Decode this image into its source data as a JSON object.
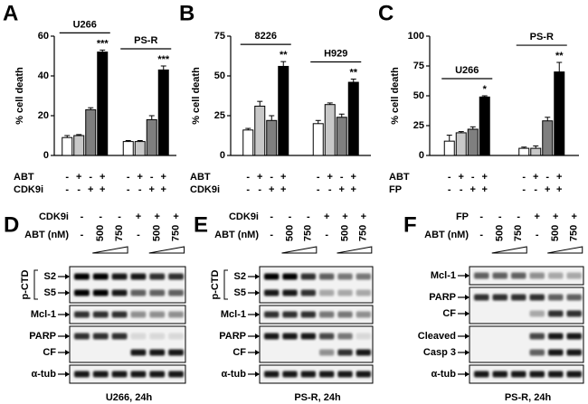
{
  "chart_data": [
    {
      "type": "bar",
      "letter": "A",
      "ylabel": "% cell death",
      "ylim": [
        0,
        60
      ],
      "yticks": [
        0,
        20,
        40,
        60
      ],
      "groups": [
        "U266",
        "PS-R"
      ],
      "series": [
        {
          "color": "#ffffff",
          "values": [
            9,
            7
          ],
          "errors": [
            1,
            0.5
          ]
        },
        {
          "color": "#c8c8c8",
          "values": [
            10,
            7
          ],
          "errors": [
            0.5,
            0.5
          ]
        },
        {
          "color": "#7f7f7f",
          "values": [
            23,
            18
          ],
          "errors": [
            1,
            2
          ]
        },
        {
          "color": "#000000",
          "values": [
            52,
            43
          ],
          "errors": [
            1,
            2
          ],
          "annotations": [
            "***",
            "***"
          ]
        }
      ],
      "conditions": [
        {
          "label": "ABT",
          "signs": [
            "-",
            "+",
            "-",
            "+",
            "-",
            "+",
            "-",
            "+"
          ]
        },
        {
          "label": "CDK9i",
          "signs": [
            "-",
            "-",
            "+",
            "+",
            "-",
            "-",
            "+",
            "+"
          ]
        }
      ]
    },
    {
      "type": "bar",
      "letter": "B",
      "ylabel": "% cell death",
      "ylim": [
        0,
        75
      ],
      "yticks": [
        0,
        25,
        50,
        75
      ],
      "groups": [
        "8226",
        "H929"
      ],
      "series": [
        {
          "color": "#ffffff",
          "values": [
            16,
            20
          ],
          "errors": [
            1,
            2
          ]
        },
        {
          "color": "#c8c8c8",
          "values": [
            31,
            32
          ],
          "errors": [
            3,
            1
          ]
        },
        {
          "color": "#7f7f7f",
          "values": [
            22,
            24
          ],
          "errors": [
            3,
            2
          ]
        },
        {
          "color": "#000000",
          "values": [
            56,
            46
          ],
          "errors": [
            3,
            2
          ],
          "annotations": [
            "**",
            "**"
          ]
        }
      ],
      "conditions": [
        {
          "label": "ABT",
          "signs": [
            "-",
            "+",
            "-",
            "+",
            "-",
            "+",
            "-",
            "+"
          ]
        },
        {
          "label": "CDK9i",
          "signs": [
            "-",
            "-",
            "+",
            "+",
            "-",
            "-",
            "+",
            "+"
          ]
        }
      ]
    },
    {
      "type": "bar",
      "letter": "C",
      "ylabel": "% cell death",
      "ylim": [
        0,
        100
      ],
      "yticks": [
        0,
        25,
        50,
        75,
        100
      ],
      "groups": [
        "U266",
        "PS-R"
      ],
      "series": [
        {
          "color": "#ffffff",
          "values": [
            12,
            6
          ],
          "errors": [
            5,
            1
          ]
        },
        {
          "color": "#c8c8c8",
          "values": [
            19,
            6
          ],
          "errors": [
            1,
            2
          ]
        },
        {
          "color": "#7f7f7f",
          "values": [
            22,
            29
          ],
          "errors": [
            2,
            3
          ]
        },
        {
          "color": "#000000",
          "values": [
            49,
            70
          ],
          "errors": [
            1,
            8
          ],
          "annotations": [
            "*",
            "**"
          ]
        }
      ],
      "conditions": [
        {
          "label": "ABT",
          "signs": [
            "-",
            "+",
            "-",
            "+",
            "-",
            "+",
            "-",
            "+"
          ]
        },
        {
          "label": "FP",
          "signs": [
            "-",
            "-",
            "+",
            "+",
            "-",
            "-",
            "+",
            "+"
          ]
        }
      ]
    }
  ],
  "blots": [
    {
      "letter": "D",
      "rows": [
        {
          "label": "CDK9i",
          "signs": [
            "-",
            "-",
            "-",
            "+",
            "+",
            "+"
          ]
        },
        {
          "label": "ABT (nM)",
          "signs": [
            "-",
            "500",
            "750",
            "-",
            "500",
            "750"
          ]
        }
      ],
      "boxes": [
        {
          "group": "p-CTD",
          "labels": [
            "S2",
            "S5"
          ]
        },
        {
          "labels": [
            "Mcl-1"
          ]
        },
        {
          "labels": [
            "PARP",
            "CF"
          ]
        },
        {
          "labels": [
            "α-tub"
          ]
        }
      ],
      "caption": "U266, 24h"
    },
    {
      "letter": "E",
      "rows": [
        {
          "label": "CDK9i",
          "signs": [
            "-",
            "-",
            "-",
            "+",
            "+",
            "+"
          ]
        },
        {
          "label": "ABT (nM)",
          "signs": [
            "-",
            "500",
            "750",
            "-",
            "500",
            "750"
          ]
        }
      ],
      "boxes": [
        {
          "group": "p-CTD",
          "labels": [
            "S2",
            "S5"
          ]
        },
        {
          "labels": [
            "Mcl-1"
          ]
        },
        {
          "labels": [
            "PARP",
            "CF"
          ]
        },
        {
          "labels": [
            "α-tub"
          ]
        }
      ],
      "caption": "PS-R, 24h"
    },
    {
      "letter": "F",
      "rows": [
        {
          "label": "FP",
          "signs": [
            "-",
            "-",
            "-",
            "+",
            "+",
            "+"
          ]
        },
        {
          "label": "ABT (nM)",
          "signs": [
            "-",
            "500",
            "750",
            "-",
            "500",
            "750"
          ]
        }
      ],
      "boxes": [
        {
          "labels": [
            "Mcl-1"
          ]
        },
        {
          "labels": [
            "PARP",
            "CF"
          ]
        },
        {
          "labels": [
            "Cleaved",
            "Casp 3"
          ]
        },
        {
          "labels": [
            "α-tub"
          ]
        }
      ],
      "caption": "PS-R, 24h"
    }
  ]
}
